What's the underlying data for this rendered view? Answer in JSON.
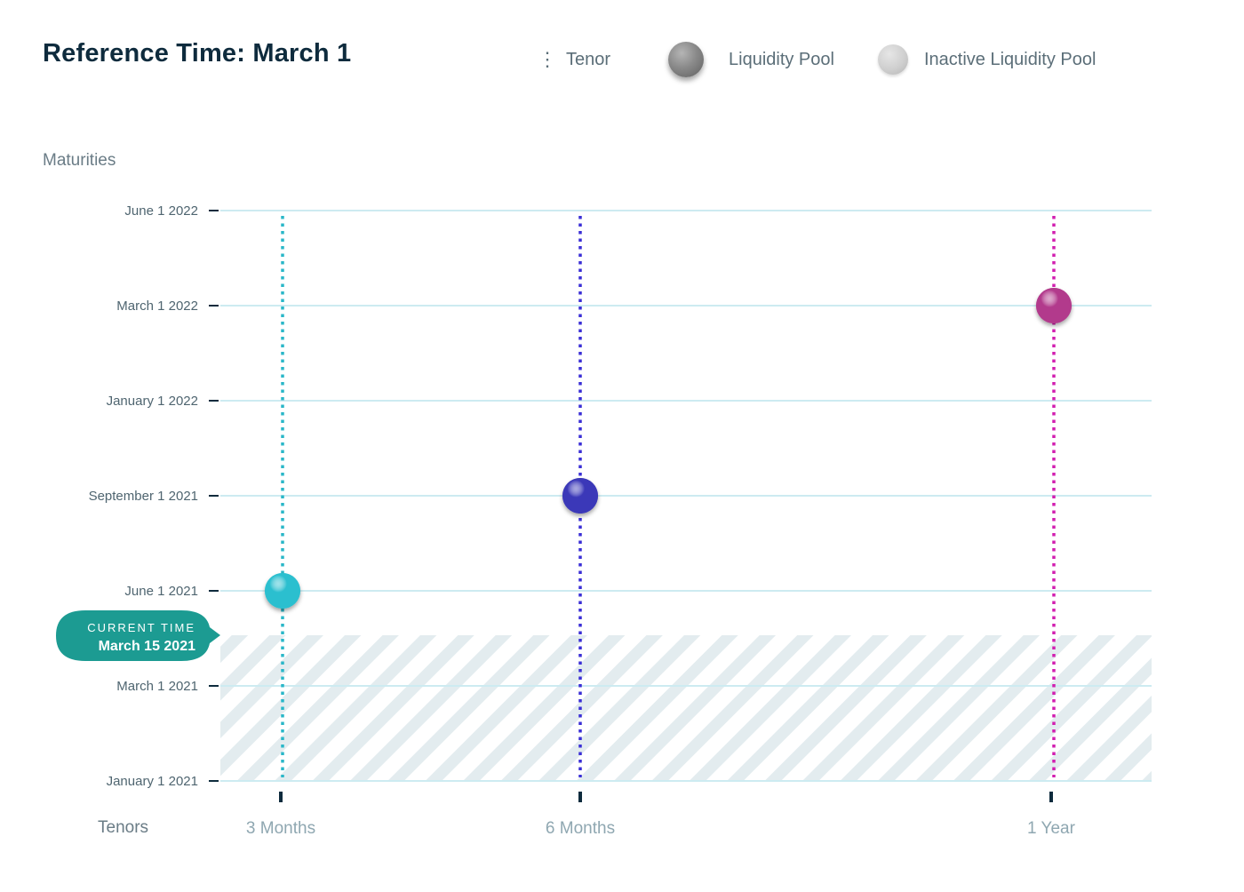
{
  "header": {
    "title": "Reference Time: March 1"
  },
  "legend": {
    "tenor": "Tenor",
    "pool": "Liquidity Pool",
    "inactive_pool": "Inactive Liquidity Pool"
  },
  "chart_data": {
    "type": "scatter",
    "y_axis_title": "Maturities",
    "x_axis_title": "Tenors",
    "y_ticks": [
      "June 1 2022",
      "March 1 2022",
      "January 1 2022",
      "September 1 2021",
      "June 1 2021",
      "March 1 2021",
      "January 1 2021"
    ],
    "x_ticks": [
      "3 Months",
      "6 Months",
      "1 Year"
    ],
    "points": [
      {
        "tenor": "3 Months",
        "maturity": "June 1 2021",
        "color": "#2bbfcf"
      },
      {
        "tenor": "6 Months",
        "maturity": "September 1 2021",
        "color": "#3b38b8"
      },
      {
        "tenor": "1 Year",
        "maturity": "March 1 2022",
        "color": "#b23a8c"
      }
    ],
    "tenor_line_colors": [
      "#2ab7c8",
      "#3a2fd6",
      "#d21fb0"
    ],
    "current_time": {
      "label": "CURRENT TIME",
      "date": "March 15 2021",
      "color": "#1c9b92"
    },
    "past_region": "hatched",
    "grid": true
  }
}
